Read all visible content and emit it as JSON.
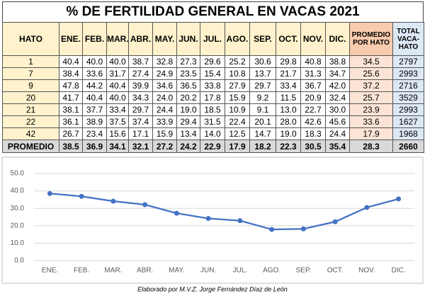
{
  "table": {
    "title": "% DE FERTILIDAD GENERAL EN VACAS 2021",
    "header": [
      "HATO",
      "ENE.",
      "FEB.",
      "MAR.",
      "ABR.",
      "MAY.",
      "JUN.",
      "JUL.",
      "AGO.",
      "SEP.",
      "OCT.",
      "NOV.",
      "DIC.",
      "PROMEDIO POR HATO",
      "TOTAL VACA-HATO"
    ],
    "rows": [
      [
        "1",
        "40.4",
        "40.0",
        "40.0",
        "38.7",
        "32.8",
        "27.3",
        "29.6",
        "25.2",
        "30.6",
        "29.8",
        "40.8",
        "38.8",
        "34.5",
        "2797"
      ],
      [
        "7",
        "38.4",
        "33.6",
        "31.7",
        "27.4",
        "24.9",
        "23.5",
        "15.4",
        "10.8",
        "13.7",
        "21.7",
        "31.3",
        "34.7",
        "25.6",
        "2993"
      ],
      [
        "9",
        "47.8",
        "44.2",
        "40.4",
        "39.9",
        "34.6",
        "36.5",
        "33.8",
        "27.9",
        "29.7",
        "33.4",
        "36.7",
        "42.0",
        "37.2",
        "2716"
      ],
      [
        "20",
        "41.7",
        "40.4",
        "40.0",
        "34.3",
        "24.0",
        "20.2",
        "17.8",
        "15.9",
        "9.2",
        "11.5",
        "20.9",
        "32.4",
        "25.7",
        "3529"
      ],
      [
        "21",
        "38.1",
        "37.7",
        "33.4",
        "29.7",
        "24.4",
        "19.0",
        "18.5",
        "10.9",
        "9.1",
        "13.0",
        "22.7",
        "30.0",
        "23.9",
        "2993"
      ],
      [
        "22",
        "36.1",
        "38.9",
        "37.5",
        "37.4",
        "33.9",
        "29.4",
        "31.5",
        "22.4",
        "20.1",
        "28.0",
        "42.6",
        "45.6",
        "33.6",
        "1627"
      ],
      [
        "42",
        "26.7",
        "23.4",
        "15.6",
        "17.1",
        "15.9",
        "13.4",
        "14.0",
        "12.5",
        "14.7",
        "19.0",
        "18.3",
        "24.4",
        "17.9",
        "1968"
      ]
    ],
    "footer": [
      "PROMEDIO",
      "38.5",
      "36.9",
      "34.1",
      "32.1",
      "27.2",
      "24.2",
      "22.9",
      "17.9",
      "18.2",
      "22.3",
      "30.5",
      "35.4",
      "28.3",
      "2660"
    ]
  },
  "chart_data": {
    "type": "line",
    "categories": [
      "ENE.",
      "FEB.",
      "MAR.",
      "ABR.",
      "MAY.",
      "JUN.",
      "JUL.",
      "AGO.",
      "SEP.",
      "OCT.",
      "NOV.",
      "DIC."
    ],
    "values": [
      38.5,
      36.9,
      34.1,
      32.1,
      27.2,
      24.2,
      22.9,
      17.9,
      18.2,
      22.3,
      30.5,
      35.4
    ],
    "color": "#4472c4",
    "ylim": [
      0,
      50
    ],
    "yticks": [
      {
        "value": 0,
        "label": "0.0"
      },
      {
        "value": 10,
        "label": "10.0"
      },
      {
        "value": 20,
        "label": "20.0"
      },
      {
        "value": 30,
        "label": "30.0"
      },
      {
        "value": 40,
        "label": "40.0"
      },
      {
        "value": 50,
        "label": "50.0"
      }
    ],
    "grid": true
  },
  "credit": "Elaborado por M.V.Z. Jorge Fernández Díaz de León"
}
